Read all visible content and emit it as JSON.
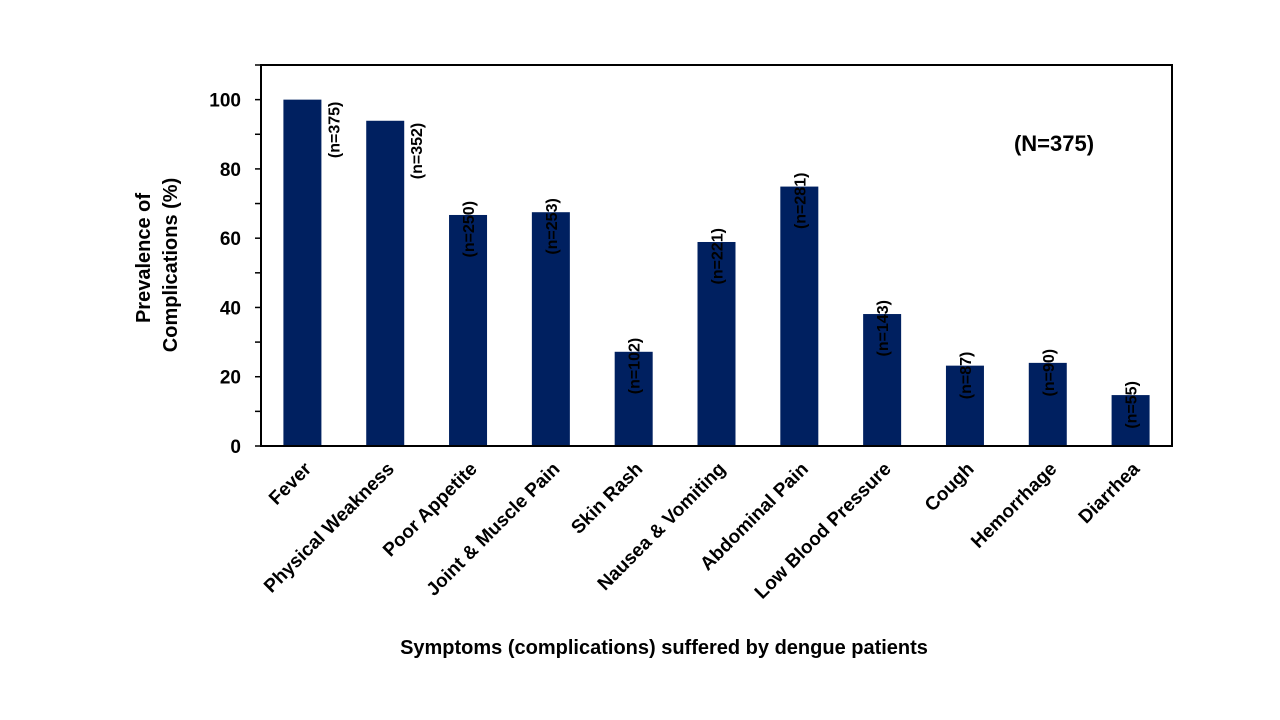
{
  "chart_data": {
    "type": "bar",
    "title": "",
    "categories": [
      "Fever",
      "Physical Weakness",
      "Poor Appetite",
      "Joint & Muscle Pain",
      "Skin Rash",
      "Nausea & Vomiting",
      "Abdominal Pain",
      "Low Blood Pressure",
      "Cough",
      "Hemorrhage",
      "Diarrhea"
    ],
    "values": [
      100,
      93.9,
      66.7,
      67.5,
      27.2,
      58.9,
      74.9,
      38.1,
      23.2,
      24.0,
      14.7
    ],
    "data_labels": [
      "(n=375)",
      "(n=352)",
      "(n=250)",
      "(n=253)",
      "(n=102)",
      "(n=221)",
      "(n=281)",
      "(n=143)",
      "(n=87)",
      "(n=90)",
      "(n=55)"
    ],
    "ylabel_line1": "Prevalence of",
    "ylabel_line2": "Complications (%)",
    "xlabel": "Symptoms (complications) suffered by dengue patients",
    "annotation": "(N=375)",
    "ylim": [
      0,
      110
    ],
    "yticks": [
      0,
      20,
      40,
      60,
      80,
      100
    ],
    "grid": false,
    "bar_color": "#002060"
  }
}
